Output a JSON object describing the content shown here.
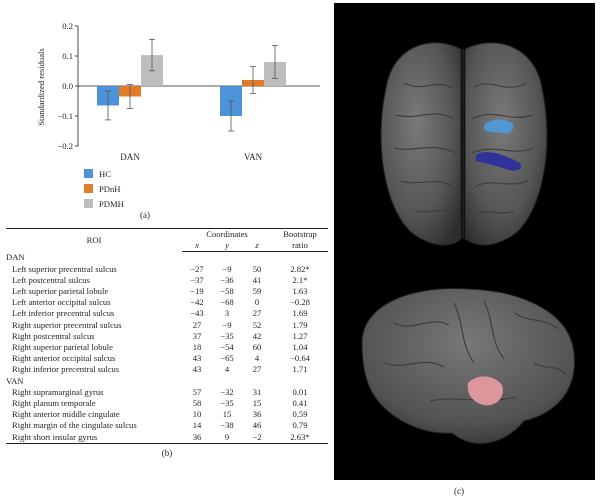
{
  "chart_data": {
    "type": "bar",
    "categories": [
      "DAN",
      "VAN"
    ],
    "series": [
      {
        "name": "HC",
        "color": "#4d93d9",
        "values": [
          -0.065,
          -0.1
        ],
        "errors": [
          0.048,
          0.05
        ]
      },
      {
        "name": "PDnH",
        "color": "#e07b27",
        "values": [
          -0.035,
          0.02
        ],
        "errors": [
          0.04,
          0.045
        ]
      },
      {
        "name": "PDMH",
        "color": "#bdbdbd",
        "values": [
          0.103,
          0.08
        ],
        "errors": [
          0.052,
          0.055
        ]
      }
    ],
    "ylabel": "Standardized residuals",
    "ylim": [
      -0.2,
      0.2
    ],
    "yticks": [
      "0.2",
      "0.1",
      "0.0",
      "−0.1",
      "−0.2"
    ],
    "legend_placement": "bottom-left",
    "grid": false
  },
  "labels": {
    "a": "(a)",
    "b": "(b)",
    "c": "(c)"
  },
  "table": {
    "headers": {
      "roi": "ROI",
      "coords": "Coordinates",
      "x": "x",
      "y": "y",
      "z": "z",
      "ratio_1": "Bootstrap",
      "ratio_2": "ratio"
    },
    "groups": [
      {
        "name": "DAN",
        "rows": [
          {
            "roi": "Left superior precentral sulcus",
            "x": "−27",
            "y": "−9",
            "z": "50",
            "ratio": "2.82*"
          },
          {
            "roi": "Left postcentral sulcus",
            "x": "−37",
            "y": "−36",
            "z": "41",
            "ratio": "2.1*"
          },
          {
            "roi": "Left superior parietal lobule",
            "x": "−19",
            "y": "−58",
            "z": "59",
            "ratio": "1.63"
          },
          {
            "roi": "Left anterior occipital sulcus",
            "x": "−42",
            "y": "−68",
            "z": "0",
            "ratio": "−0.28"
          },
          {
            "roi": "Left inferior precentral sulcus",
            "x": "−43",
            "y": "3",
            "z": "27",
            "ratio": "1.69"
          },
          {
            "roi": "Right superior precentral sulcus",
            "x": "27",
            "y": "−9",
            "z": "52",
            "ratio": "1.79"
          },
          {
            "roi": "Right postcentral sulcus",
            "x": "37",
            "y": "−35",
            "z": "42",
            "ratio": "1.27"
          },
          {
            "roi": "Right superior parietal lobule",
            "x": "18",
            "y": "−54",
            "z": "60",
            "ratio": "1.04"
          },
          {
            "roi": "Right anterior occipital sulcus",
            "x": "43",
            "y": "−65",
            "z": "4",
            "ratio": "−0.64"
          },
          {
            "roi": "Right inferior precentral sulcus",
            "x": "43",
            "y": "4",
            "z": "27",
            "ratio": "1.71"
          }
        ]
      },
      {
        "name": "VAN",
        "rows": [
          {
            "roi": "Right supramarginal gyrus",
            "x": "57",
            "y": "−32",
            "z": "31",
            "ratio": "0.01"
          },
          {
            "roi": "Right planum temporale",
            "x": "58",
            "y": "−35",
            "z": "15",
            "ratio": "0.41"
          },
          {
            "roi": "Right anterior middle cingulate",
            "x": "10",
            "y": "15",
            "z": "36",
            "ratio": "0.59"
          },
          {
            "roi": "Right margin of the cingulate sulcus",
            "x": "14",
            "y": "−38",
            "z": "46",
            "ratio": "0.79"
          },
          {
            "roi": "Right short insular gyrus",
            "x": "36",
            "y": "9",
            "z": "−2",
            "ratio": "2.63*"
          }
        ]
      }
    ]
  },
  "brain": {
    "surface_color": "#5b5b5b",
    "dan_color_light": "#4c9be0",
    "dan_color_dark": "#2c2f9c",
    "van_color": "#e39aa0"
  }
}
